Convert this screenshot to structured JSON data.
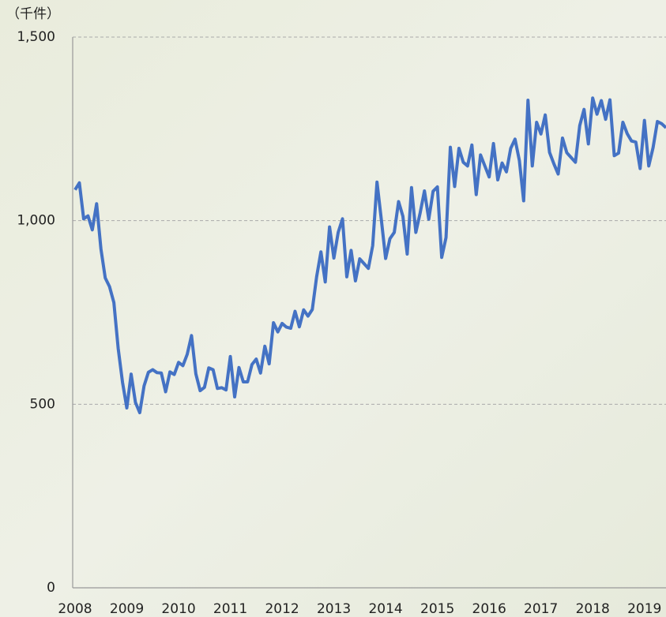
{
  "chart_data": {
    "type": "line",
    "ylabel": "（千件）",
    "categories": [
      "2008",
      null,
      null,
      null,
      null,
      null,
      null,
      null,
      null,
      null,
      null,
      null,
      "2009",
      null,
      null,
      null,
      null,
      null,
      null,
      null,
      null,
      null,
      null,
      null,
      "2010",
      null,
      null,
      null,
      null,
      null,
      null,
      null,
      null,
      null,
      null,
      null,
      "2011",
      null,
      null,
      null,
      null,
      null,
      null,
      null,
      null,
      null,
      null,
      null,
      "2012",
      null,
      null,
      null,
      null,
      null,
      null,
      null,
      null,
      null,
      null,
      null,
      "2013",
      null,
      null,
      null,
      null,
      null,
      null,
      null,
      null,
      null,
      null,
      null,
      "2014",
      null,
      null,
      null,
      null,
      null,
      null,
      null,
      null,
      null,
      null,
      null,
      "2015",
      null,
      null,
      null,
      null,
      null,
      null,
      null,
      null,
      null,
      null,
      null,
      "2016",
      null,
      null,
      null,
      null,
      null,
      null,
      null,
      null,
      null,
      null,
      null,
      "2017",
      null,
      null,
      null,
      null,
      null,
      null,
      null,
      null,
      null,
      null,
      null,
      "2018",
      null,
      null,
      null,
      null,
      null,
      null,
      null,
      null,
      null,
      null,
      null,
      "2019",
      null,
      null,
      null,
      null,
      null
    ],
    "values": [
      1084,
      1103,
      1005,
      1013,
      975,
      1046,
      923,
      844,
      820,
      777,
      652,
      560,
      490,
      582,
      505,
      477,
      550,
      587,
      594,
      586,
      585,
      534,
      588,
      581,
      614,
      605,
      636,
      687,
      583,
      537,
      546,
      599,
      594,
      543,
      545,
      539,
      630,
      520,
      600,
      561,
      561,
      608,
      623,
      585,
      658,
      610,
      722,
      697,
      720,
      710,
      707,
      753,
      711,
      757,
      740,
      758,
      847,
      915,
      833,
      983,
      898,
      968,
      1005,
      847,
      919,
      836,
      896,
      883,
      870,
      932,
      1105,
      1003,
      897,
      951,
      968,
      1052,
      1012,
      909,
      1090,
      968,
      1021,
      1081,
      1004,
      1080,
      1092,
      900,
      954,
      1200,
      1093,
      1197,
      1159,
      1149,
      1206,
      1071,
      1179,
      1149,
      1119,
      1210,
      1111,
      1157,
      1133,
      1197,
      1222,
      1164,
      1054,
      1328,
      1149,
      1268,
      1236,
      1288,
      1186,
      1155,
      1127,
      1225,
      1185,
      1172,
      1159,
      1259,
      1303,
      1209,
      1334,
      1290,
      1327,
      1276,
      1329,
      1177,
      1184,
      1268,
      1237,
      1217,
      1214,
      1142,
      1273,
      1149,
      1199,
      1270,
      1264,
      1253
    ],
    "color": "#4472c4",
    "ylim": [
      0,
      1500
    ],
    "yticks": [
      0,
      500,
      {
        "value": 1000,
        "label": "1,000"
      },
      {
        "value": 1500,
        "label": "1,500"
      }
    ],
    "grid": true
  }
}
